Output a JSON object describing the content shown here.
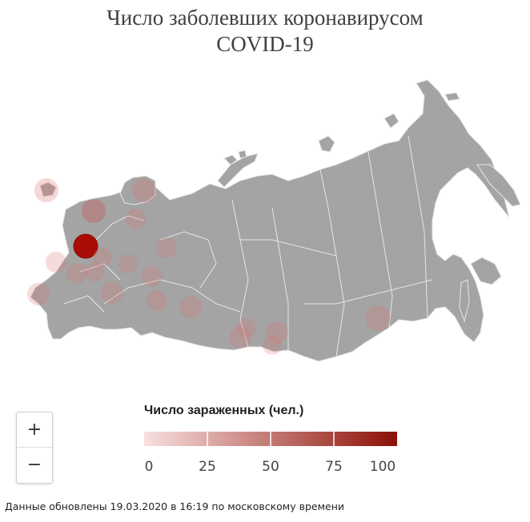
{
  "title": {
    "line1": "Число заболевших коронавирусом",
    "line2": "COVID-19"
  },
  "colors": {
    "land": "#a4a4a4",
    "border": "#e6e6e6",
    "scale_low": "#f9e0e0",
    "scale_high": "#8b1006"
  },
  "zoom": {
    "in_label": "+",
    "out_label": "−"
  },
  "legend": {
    "title": "Число зараженных (чел.)",
    "ticks": [
      "0",
      "25",
      "50",
      "75",
      "100"
    ]
  },
  "footer": "Данные обновлены 19.03.2020 в 16:19 по московскому времени"
}
